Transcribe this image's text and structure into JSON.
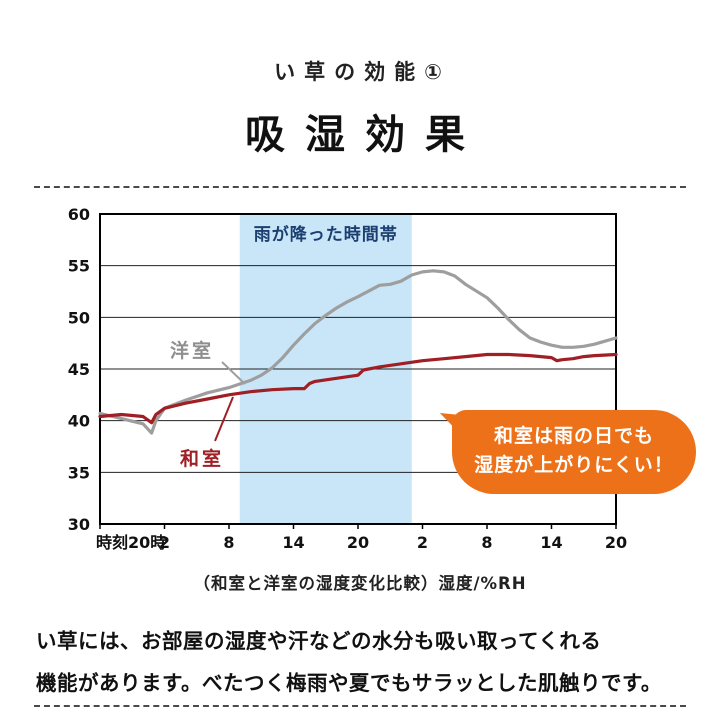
{
  "header": {
    "small_title": "い草の効能①",
    "large_title": "吸湿効果"
  },
  "callout": {
    "line1": "和室は雨の日でも",
    "line2": "湿度が上がりにくい！",
    "bg_color": "#ed7119"
  },
  "caption": "（和室と洋室の湿度変化比較）湿度/%RH",
  "body": {
    "line1": "い草には、お部屋の湿度や汗などの水分も吸い取ってくれる",
    "line2": "機能があります。べたつく梅雨や夏でもサラッとした肌触りです。"
  },
  "chart_data": {
    "type": "line",
    "title": "",
    "xlabel": "時刻",
    "ylabel": "湿度/%RH",
    "ylim": [
      30,
      60
    ],
    "y_ticks": [
      60,
      55,
      50,
      45,
      40,
      35,
      30
    ],
    "x_ticks": [
      "時刻20時",
      "2",
      "8",
      "14",
      "20",
      "2",
      "8",
      "14",
      "20"
    ],
    "x_tick_hours": [
      0,
      6,
      12,
      18,
      24,
      30,
      36,
      42,
      48
    ],
    "grid": "horizontal",
    "legend_position": "on-chart-labels",
    "rain_band": {
      "label": "雨が降った時間帯",
      "start_hour": 13,
      "end_hour": 29,
      "fill_color": "#c9e6f8",
      "label_color": "#1c3f70"
    },
    "series": [
      {
        "name": "洋室",
        "color": "#9e9e9e",
        "x": [
          0,
          2,
          4,
          4.8,
          5.2,
          6,
          8,
          10,
          12,
          14,
          15,
          16,
          17,
          18,
          19,
          20,
          21,
          22,
          23,
          24,
          26,
          27,
          28,
          29,
          30,
          31,
          32,
          33,
          34,
          36,
          37,
          38,
          39,
          40,
          41,
          42,
          43,
          44,
          45,
          46,
          47,
          48
        ],
        "y": [
          40.7,
          40.2,
          39.7,
          38.8,
          40.0,
          41.2,
          42.0,
          42.7,
          43.2,
          43.9,
          44.4,
          45.1,
          46.1,
          47.3,
          48.4,
          49.4,
          50.2,
          50.9,
          51.5,
          52.0,
          53.1,
          53.2,
          53.5,
          54.1,
          54.4,
          54.5,
          54.4,
          54.0,
          53.2,
          51.9,
          50.9,
          49.8,
          48.8,
          48.0,
          47.6,
          47.3,
          47.1,
          47.1,
          47.2,
          47.4,
          47.7,
          48.0
        ]
      },
      {
        "name": "和室",
        "color": "#9f1f24",
        "x": [
          0,
          2,
          4,
          4.8,
          5.2,
          6,
          8,
          10,
          12,
          14,
          16,
          18,
          19,
          19.5,
          20,
          22,
          24,
          24.5,
          26,
          28,
          30,
          32,
          34,
          36,
          38,
          40,
          41,
          42,
          42.5,
          43,
          44,
          45,
          46,
          48
        ],
        "y": [
          40.4,
          40.6,
          40.4,
          39.8,
          40.6,
          41.2,
          41.7,
          42.1,
          42.5,
          42.8,
          43.0,
          43.1,
          43.1,
          43.6,
          43.8,
          44.1,
          44.4,
          44.9,
          45.2,
          45.5,
          45.8,
          46.0,
          46.2,
          46.4,
          46.4,
          46.3,
          46.2,
          46.1,
          45.8,
          45.9,
          46.0,
          46.2,
          46.3,
          46.4
        ]
      }
    ]
  }
}
